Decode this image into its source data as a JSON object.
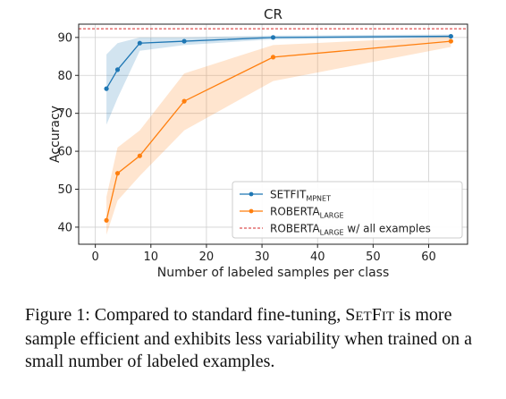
{
  "chart_data": {
    "type": "line",
    "title": "CR",
    "xlabel": "Number of labeled samples per class",
    "ylabel": "Accuracy",
    "xlim": [
      -3,
      67
    ],
    "ylim": [
      35.5,
      93.5
    ],
    "xticks": [
      0,
      10,
      20,
      30,
      40,
      50,
      60
    ],
    "yticks": [
      40,
      50,
      60,
      70,
      80,
      90
    ],
    "grid": true,
    "legend_position": "lower-right",
    "series": [
      {
        "name": "SETFIT",
        "name_sub": "MPNET",
        "color": "#1f77b4",
        "style": "solid-marker",
        "x": [
          2,
          4,
          8,
          16,
          32,
          64
        ],
        "y": [
          76.5,
          81.5,
          88.5,
          89.0,
          90.0,
          90.3
        ],
        "y_lower": [
          67.0,
          74.0,
          86.5,
          88.0,
          89.5,
          90.0
        ],
        "y_upper": [
          85.5,
          88.5,
          90.0,
          90.0,
          90.5,
          90.8
        ]
      },
      {
        "name": "ROBERTA",
        "name_sub": "LARGE",
        "color": "#ff7f0e",
        "style": "solid-marker",
        "x": [
          2,
          4,
          8,
          16,
          32,
          64
        ],
        "y": [
          41.8,
          54.2,
          58.8,
          73.2,
          84.8,
          89.0
        ],
        "y_lower": [
          38.0,
          47.0,
          53.5,
          65.5,
          78.5,
          87.5
        ],
        "y_upper": [
          48.0,
          61.0,
          65.5,
          80.5,
          88.0,
          90.2
        ]
      },
      {
        "name": "ROBERTA",
        "name_sub": "LARGE",
        "name_suffix": " w/ all examples",
        "color": "#d62728",
        "style": "dashed",
        "y_const": 92.3
      }
    ]
  },
  "caption": {
    "prefix": "Figure 1: Compared to standard fine-tuning, ",
    "sc_s": "S",
    "sc_et": "ET",
    "sc_f": "F",
    "sc_it": "IT",
    "rest": " is more sample efficient and exhibits less variability when trained on a small number of labeled examples."
  }
}
